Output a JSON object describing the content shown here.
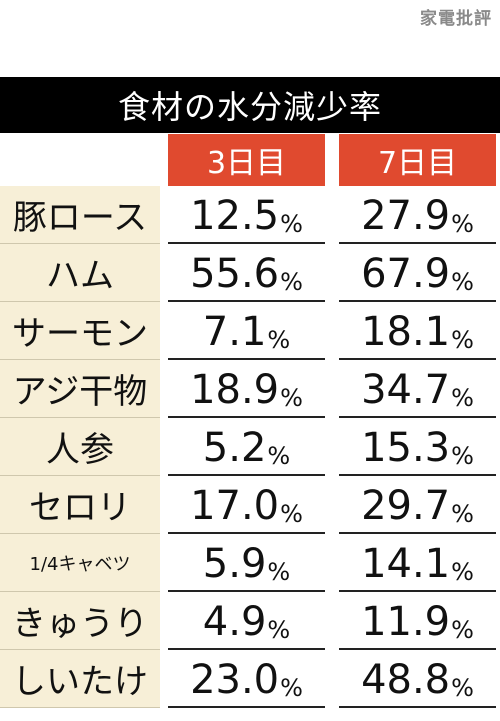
{
  "watermark": "家電批評",
  "title": "食材の水分減少率",
  "headers": {
    "day3": "3日目",
    "day7": "7日目"
  },
  "rows": [
    {
      "label": "豚ロース",
      "day3": "12.5",
      "day7": "27.9"
    },
    {
      "label": "ハム",
      "day3": "55.6",
      "day7": "67.9"
    },
    {
      "label": "サーモン",
      "day3": "7.1",
      "day7": "18.1"
    },
    {
      "label": "アジ干物",
      "day3": "18.9",
      "day7": "34.7"
    },
    {
      "label": "人参",
      "day3": "5.2",
      "day7": "15.3"
    },
    {
      "label": "セロリ",
      "day3": "17.0",
      "day7": "29.7"
    },
    {
      "label": "1/4キャベツ",
      "day3": "5.9",
      "day7": "14.1"
    },
    {
      "label": "きゅうり",
      "day3": "4.9",
      "day7": "11.9"
    },
    {
      "label": "しいたけ",
      "day3": "23.0",
      "day7": "48.8"
    }
  ],
  "unit": "%",
  "colors": {
    "header": "#e04a2f",
    "label_bg": "#f7efd7",
    "title_bg": "#000000"
  }
}
